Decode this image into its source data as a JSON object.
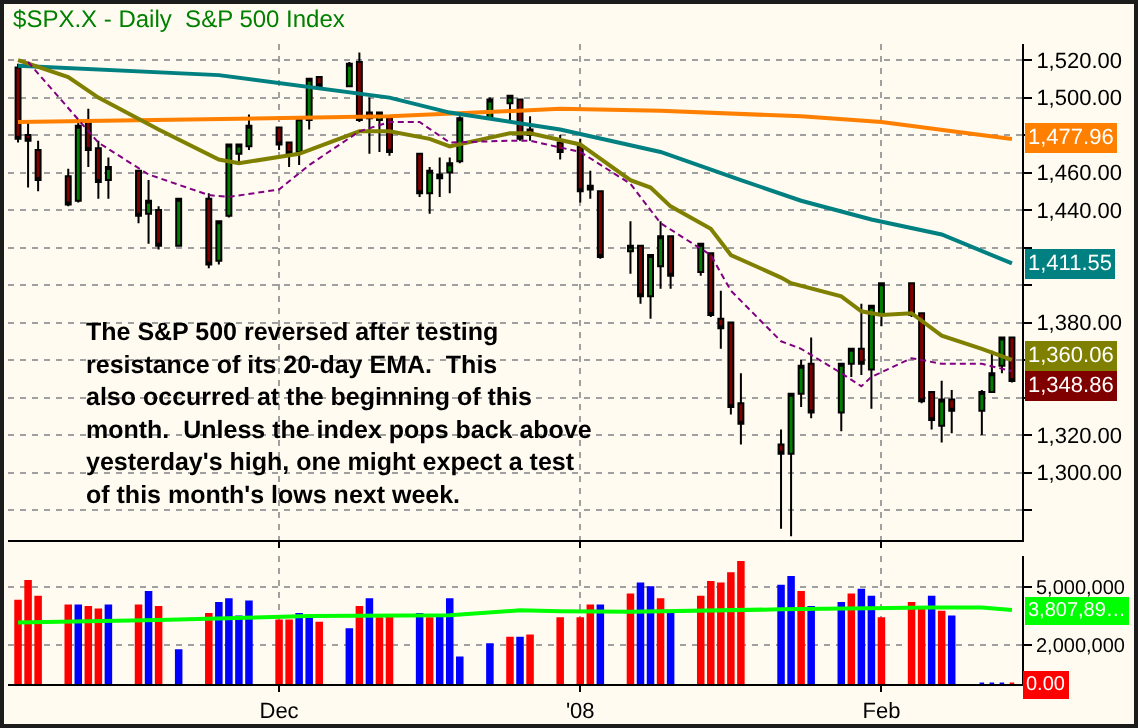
{
  "chart_data": [
    {
      "type": "candlestick",
      "title": "$SPX.X - Daily  S&P 500 Index",
      "x": [
        "2007-11-07",
        "2007-11-08",
        "2007-11-09",
        "2007-11-12",
        "2007-11-13",
        "2007-11-14",
        "2007-11-15",
        "2007-11-16",
        "2007-11-19",
        "2007-11-20",
        "2007-11-21",
        "2007-11-23",
        "2007-11-26",
        "2007-11-27",
        "2007-11-28",
        "2007-11-29",
        "2007-11-30",
        "2007-12-03",
        "2007-12-04",
        "2007-12-05",
        "2007-12-06",
        "2007-12-07",
        "2007-12-10",
        "2007-12-11",
        "2007-12-12",
        "2007-12-13",
        "2007-12-14",
        "2007-12-17",
        "2007-12-18",
        "2007-12-19",
        "2007-12-20",
        "2007-12-21",
        "2007-12-24",
        "2007-12-26",
        "2007-12-27",
        "2007-12-28",
        "2007-12-31",
        "2008-01-02",
        "2008-01-03",
        "2008-01-04",
        "2008-01-07",
        "2008-01-08",
        "2008-01-09",
        "2008-01-10",
        "2008-01-11",
        "2008-01-14",
        "2008-01-15",
        "2008-01-16",
        "2008-01-17",
        "2008-01-18",
        "2008-01-22",
        "2008-01-23",
        "2008-01-24",
        "2008-01-25",
        "2008-01-28",
        "2008-01-29",
        "2008-01-30",
        "2008-01-31",
        "2008-02-01",
        "2008-02-04",
        "2008-02-05",
        "2008-02-06",
        "2008-02-07",
        "2008-02-08",
        "2008-02-11",
        "2008-02-12",
        "2008-02-13",
        "2008-02-14"
      ],
      "ohlc": [
        [
          1516,
          1518,
          1476,
          1478
        ],
        [
          1480,
          1487,
          1452,
          1477
        ],
        [
          1472,
          1477,
          1450,
          1456
        ],
        [
          1458,
          1462,
          1442,
          1443
        ],
        [
          1445,
          1487,
          1444,
          1485
        ],
        [
          1487,
          1494,
          1463,
          1472
        ],
        [
          1473,
          1477,
          1446,
          1455
        ],
        [
          1456,
          1468,
          1446,
          1463
        ],
        [
          1461,
          1461,
          1433,
          1437
        ],
        [
          1438,
          1456,
          1422,
          1445
        ],
        [
          1440,
          1442,
          1419,
          1421
        ],
        [
          1421,
          1446,
          1421,
          1446
        ],
        [
          1446,
          1449,
          1409,
          1411
        ],
        [
          1413,
          1434,
          1411,
          1434
        ],
        [
          1437,
          1475,
          1436,
          1475
        ],
        [
          1470,
          1475,
          1465,
          1475
        ],
        [
          1474,
          1491,
          1472,
          1485
        ],
        [
          1484,
          1484,
          1472,
          1475
        ],
        [
          1476,
          1476,
          1463,
          1470
        ],
        [
          1471,
          1489,
          1464,
          1489
        ],
        [
          1488,
          1510,
          1483,
          1510
        ],
        [
          1511,
          1511,
          1505,
          1506
        ],
        [
          1506,
          1519,
          1506,
          1518
        ],
        [
          1519,
          1524,
          1487,
          1488
        ],
        [
          1492,
          1500,
          1470,
          1489
        ],
        [
          1488,
          1492,
          1471,
          1492
        ],
        [
          1490,
          1490,
          1469,
          1471
        ],
        [
          1470,
          1470,
          1447,
          1449
        ],
        [
          1449,
          1463,
          1438,
          1461
        ],
        [
          1459,
          1468,
          1447,
          1457
        ],
        [
          1460,
          1468,
          1449,
          1465
        ],
        [
          1466,
          1490,
          1465,
          1489
        ],
        [
          1489,
          1500,
          1488,
          1499
        ],
        [
          1497,
          1501,
          1488,
          1501
        ],
        [
          1499,
          1499,
          1477,
          1478
        ],
        [
          1483,
          1490,
          1477,
          1480
        ],
        [
          1476,
          1480,
          1467,
          1471
        ],
        [
          1474,
          1478,
          1444,
          1450
        ],
        [
          1453,
          1461,
          1446,
          1451
        ],
        [
          1450,
          1450,
          1414,
          1415
        ],
        [
          1418,
          1434,
          1406,
          1421
        ],
        [
          1421,
          1421,
          1390,
          1394
        ],
        [
          1394,
          1416,
          1382,
          1416
        ],
        [
          1410,
          1434,
          1398,
          1426
        ],
        [
          1426,
          1426,
          1398,
          1405
        ],
        [
          1407,
          1422,
          1405,
          1422
        ],
        [
          1417,
          1417,
          1383,
          1384
        ],
        [
          1382,
          1397,
          1366,
          1377
        ],
        [
          1380,
          1380,
          1331,
          1335
        ],
        [
          1337,
          1353,
          1315,
          1326
        ],
        [
          1315,
          1323,
          1270,
          1310
        ],
        [
          1310,
          1342,
          1266,
          1342
        ],
        [
          1342,
          1360,
          1335,
          1357
        ],
        [
          1358,
          1372,
          1329,
          1332
        ],
        [
          1332,
          1358,
          1322,
          1358
        ],
        [
          1358,
          1366,
          1351,
          1366
        ],
        [
          1366,
          1390,
          1352,
          1358
        ],
        [
          1355,
          1389,
          1334,
          1389
        ],
        [
          1384,
          1401,
          1378,
          1401
        ],
        [
          1401,
          1401,
          1383,
          1384
        ],
        [
          1385,
          1385,
          1337,
          1338
        ],
        [
          1343,
          1343,
          1323,
          1328
        ],
        [
          1325,
          1349,
          1316,
          1339
        ],
        [
          1339,
          1344,
          1321,
          1333
        ],
        [
          1333,
          1344,
          1320,
          1343
        ],
        [
          1343,
          1365,
          1343,
          1353
        ],
        [
          1357,
          1372,
          1353,
          1372
        ],
        [
          1372,
          1372,
          1348,
          1348.86
        ]
      ],
      "value_labels": [
        null,
        null,
        null,
        null,
        null,
        null,
        null,
        null,
        null,
        null,
        null,
        null,
        null,
        null,
        null,
        null,
        null,
        null,
        null,
        null,
        null,
        null,
        null,
        null,
        null,
        null,
        null,
        null,
        null,
        null,
        null,
        null,
        null,
        null,
        null,
        null,
        null,
        null,
        null,
        null,
        null,
        null,
        null,
        null,
        null,
        null,
        null,
        null,
        null,
        null,
        null,
        null,
        null,
        null,
        null,
        null,
        null,
        null,
        null,
        null,
        null,
        null,
        null,
        null,
        null,
        null,
        null,
        "1,348.86"
      ],
      "series": [
        {
          "type": "line",
          "color": "#ff8000",
          "line_style": "solid",
          "x": [
            "2007-11-07",
            "2007-12-14",
            "2007-12-31",
            "2008-01-10",
            "2008-01-24",
            "2008-02-01",
            "2008-02-14"
          ],
          "values": [
            1487,
            1490,
            1494,
            1493,
            1490,
            1487,
            1477.96
          ],
          "value_labels": [
            null,
            null,
            null,
            null,
            null,
            null,
            "1,477.96"
          ]
        },
        {
          "type": "line",
          "color": "#008080",
          "line_style": "solid",
          "x": [
            "2007-11-07",
            "2007-11-27",
            "2007-12-14",
            "2007-12-20",
            "2007-12-31",
            "2008-01-10",
            "2008-01-18",
            "2008-01-24",
            "2008-01-31",
            "2008-02-07",
            "2008-02-14"
          ],
          "values": [
            1517,
            1512,
            1500,
            1492,
            1483,
            1471,
            1456,
            1445,
            1435,
            1427,
            1411.55
          ],
          "value_labels": [
            null,
            null,
            null,
            null,
            null,
            null,
            null,
            null,
            null,
            null,
            "1,411.55"
          ]
        },
        {
          "type": "line",
          "color": "#808000",
          "line_style": "solid",
          "x": [
            "2007-11-07",
            "2007-11-12",
            "2007-11-15",
            "2007-11-21",
            "2007-11-27",
            "2007-11-29",
            "2007-12-05",
            "2007-12-11",
            "2007-12-14",
            "2007-12-18",
            "2007-12-20",
            "2007-12-26",
            "2007-12-28",
            "2008-01-02",
            "2008-01-07",
            "2008-01-09",
            "2008-01-11",
            "2008-01-15",
            "2008-01-17",
            "2008-01-22",
            "2008-01-23",
            "2008-01-28",
            "2008-01-30",
            "2008-02-01",
            "2008-02-04",
            "2008-02-07",
            "2008-02-11",
            "2008-02-14"
          ],
          "values": [
            1520,
            1511,
            1500,
            1483,
            1467,
            1465,
            1470,
            1482,
            1482,
            1478,
            1474,
            1481,
            1481,
            1475,
            1456,
            1452,
            1442,
            1430,
            1416,
            1404,
            1401,
            1394,
            1386,
            1384,
            1385,
            1373,
            1366,
            1360.06
          ],
          "value_labels": [
            null,
            null,
            null,
            null,
            null,
            null,
            null,
            null,
            null,
            null,
            null,
            null,
            null,
            null,
            null,
            null,
            null,
            null,
            null,
            null,
            null,
            null,
            null,
            null,
            null,
            null,
            null,
            "1,360.06"
          ]
        },
        {
          "type": "line",
          "color": "#800080",
          "line_style": "dashed",
          "x": [
            "2007-11-08",
            "2007-11-15",
            "2007-11-20",
            "2007-11-26",
            "2007-11-28",
            "2007-12-03",
            "2007-12-06",
            "2007-12-11",
            "2007-12-14",
            "2007-12-17",
            "2007-12-20",
            "2007-12-26",
            "2007-12-28",
            "2008-01-02",
            "2008-01-07",
            "2008-01-10",
            "2008-01-15",
            "2008-01-17",
            "2008-01-22",
            "2008-01-24",
            "2008-01-28",
            "2008-01-30",
            "2008-01-31",
            "2008-02-04",
            "2008-02-07",
            "2008-02-11",
            "2008-02-14"
          ],
          "values": [
            1519,
            1476,
            1459,
            1448,
            1447,
            1451,
            1464,
            1482,
            1487,
            1487,
            1476,
            1477,
            1477,
            1471,
            1454,
            1433,
            1416,
            1397,
            1370,
            1366,
            1353,
            1346,
            1351,
            1361,
            1358,
            1358,
            1354
          ]
        }
      ],
      "annotations": [
        "The S&P 500 reversed after testing\nresistance of its 20-day EMA.  This\nalso occurred at the beginning of this\nmonth.  Unless the index pops back above\nyesterday's high, one might expect a test\nof this month's lows next week."
      ],
      "xlim": [
        "2007-11-06",
        "2008-02-15"
      ],
      "xticks": [
        {
          "value": "2007-12-03",
          "label": null
        },
        {
          "value": "2008-01-02",
          "label": null
        },
        {
          "value": "2008-02-01",
          "label": null
        }
      ],
      "ylim": [
        1264,
        1528.6
      ],
      "yticks": [
        {
          "value": 1280,
          "label": null
        },
        {
          "value": 1300,
          "label": "1,300.00"
        },
        {
          "value": 1320,
          "label": "1,320.00"
        },
        {
          "value": 1340,
          "label": null
        },
        {
          "value": 1360,
          "label": null
        },
        {
          "value": 1380,
          "label": "1,380.00"
        },
        {
          "value": 1400,
          "label": null
        },
        {
          "value": 1420,
          "label": null
        },
        {
          "value": 1440,
          "label": "1,440.00"
        },
        {
          "value": 1460,
          "label": "1,460.00"
        },
        {
          "value": 1480,
          "label": null
        },
        {
          "value": 1500,
          "label": "1,500.00"
        },
        {
          "value": 1520,
          "label": "1,520.00"
        }
      ],
      "grid": true,
      "tick_labels": "y"
    },
    {
      "type": "bar",
      "x": [
        "2007-11-07",
        "2007-11-08",
        "2007-11-09",
        "2007-11-12",
        "2007-11-13",
        "2007-11-14",
        "2007-11-15",
        "2007-11-16",
        "2007-11-19",
        "2007-11-20",
        "2007-11-21",
        "2007-11-23",
        "2007-11-26",
        "2007-11-27",
        "2007-11-28",
        "2007-11-29",
        "2007-11-30",
        "2007-12-03",
        "2007-12-04",
        "2007-12-05",
        "2007-12-06",
        "2007-12-07",
        "2007-12-10",
        "2007-12-11",
        "2007-12-12",
        "2007-12-13",
        "2007-12-14",
        "2007-12-17",
        "2007-12-18",
        "2007-12-19",
        "2007-12-20",
        "2007-12-21",
        "2007-12-24",
        "2007-12-26",
        "2007-12-27",
        "2007-12-28",
        "2007-12-31",
        "2008-01-02",
        "2008-01-03",
        "2008-01-04",
        "2008-01-07",
        "2008-01-08",
        "2008-01-09",
        "2008-01-10",
        "2008-01-11",
        "2008-01-14",
        "2008-01-15",
        "2008-01-16",
        "2008-01-17",
        "2008-01-18",
        "2008-01-22",
        "2008-01-23",
        "2008-01-24",
        "2008-01-25",
        "2008-01-28",
        "2008-01-29",
        "2008-01-30",
        "2008-01-31",
        "2008-02-01",
        "2008-02-04",
        "2008-02-05",
        "2008-02-06",
        "2008-02-07",
        "2008-02-08",
        "2008-02-11",
        "2008-02-12",
        "2008-02-13",
        "2008-02-14"
      ],
      "series": [
        {
          "type": "bar",
          "values": [
            4270000,
            5280000,
            4470000,
            4020000,
            4020000,
            3940000,
            3820000,
            4020000,
            4020000,
            4720000,
            3940000,
            1710000,
            3580000,
            4150000,
            4350000,
            3460000,
            4230000,
            3250000,
            3250000,
            3580000,
            3460000,
            3130000,
            2800000,
            3940000,
            4350000,
            3370000,
            3460000,
            3580000,
            3370000,
            3460000,
            4350000,
            1340000,
            2030000,
            2360000,
            2360000,
            2480000,
            3370000,
            3370000,
            4020000,
            4020000,
            4590000,
            5160000,
            4960000,
            4350000,
            3580000,
            4470000,
            5240000,
            5160000,
            5690000,
            6260000,
            5040000,
            5490000,
            4720000,
            3940000,
            4150000,
            4590000,
            4840000,
            4470000,
            3370000,
            4150000,
            3940000,
            4470000,
            3700000,
            3460000,
            0,
            0,
            0,
            0
          ],
          "colors": [
            "#ff0000",
            "#ff0000",
            "#ff0000",
            "#ff0000",
            "#0000ff",
            "#ff0000",
            "#ff0000",
            "#0000ff",
            "#ff0000",
            "#0000ff",
            "#ff0000",
            "#0000ff",
            "#ff0000",
            "#0000ff",
            "#0000ff",
            "#0000ff",
            "#0000ff",
            "#ff0000",
            "#ff0000",
            "#0000ff",
            "#0000ff",
            "#ff0000",
            "#0000ff",
            "#ff0000",
            "#0000ff",
            "#ff0000",
            "#ff0000",
            "#0000ff",
            "#ff0000",
            "#0000ff",
            "#0000ff",
            "#0000ff",
            "#0000ff",
            "#ff0000",
            "#0000ff",
            "#ff0000",
            "#ff0000",
            "#ff0000",
            "#ff0000",
            "#0000ff",
            "#ff0000",
            "#0000ff",
            "#0000ff",
            "#ff0000",
            "#0000ff",
            "#ff0000",
            "#ff0000",
            "#ff0000",
            "#ff0000",
            "#ff0000",
            "#0000ff",
            "#0000ff",
            "#ff0000",
            "#0000ff",
            "#0000ff",
            "#ff0000",
            "#0000ff",
            "#0000ff",
            "#ff0000",
            "#ff0000",
            "#ff0000",
            "#0000ff",
            "#ff0000",
            "#0000ff",
            "#0000ff",
            "#0000ff",
            "#0000ff",
            "#ff0000"
          ],
          "value_labels": [
            null,
            null,
            null,
            null,
            null,
            null,
            null,
            null,
            null,
            null,
            null,
            null,
            null,
            null,
            null,
            null,
            null,
            null,
            null,
            null,
            null,
            null,
            null,
            null,
            null,
            null,
            null,
            null,
            null,
            null,
            null,
            null,
            null,
            null,
            null,
            null,
            null,
            null,
            null,
            null,
            null,
            null,
            null,
            null,
            null,
            null,
            null,
            null,
            null,
            null,
            null,
            null,
            null,
            null,
            null,
            null,
            null,
            null,
            null,
            null,
            null,
            null,
            null,
            null,
            null,
            null,
            null,
            null
          ]
        },
        {
          "type": "line",
          "color": "#00ff00",
          "x": [
            "2007-11-07",
            "2007-11-21",
            "2007-12-06",
            "2007-12-20",
            "2007-12-27",
            "2007-12-31",
            "2008-01-07",
            "2008-01-22",
            "2008-02-06",
            "2008-02-11",
            "2008-02-14"
          ],
          "values": [
            3170000,
            3300000,
            3500000,
            3550000,
            3800000,
            3750000,
            3720000,
            3850000,
            3950000,
            3950000,
            3810000
          ],
          "value_labels": [
            null,
            null,
            null,
            null,
            null,
            null,
            null,
            null,
            null,
            null,
            "3,807,89…"
          ]
        }
      ],
      "annotations": [
        {
          "text": "0.00",
          "x": "2008-02-14",
          "y": 0
        }
      ],
      "xlim": [
        "2007-11-06",
        "2008-02-15"
      ],
      "xticks": [
        {
          "value": "2007-12-03",
          "label": "Dec"
        },
        {
          "value": "2008-01-02",
          "label": "'08"
        },
        {
          "value": "2008-02-01",
          "label": "Feb"
        }
      ],
      "ylim": [
        0,
        6600000
      ],
      "yticks": [
        {
          "value": 2000000,
          "label": "2,000,000"
        },
        {
          "value": 5000000,
          "label": "5,000,000"
        }
      ],
      "grid": true
    }
  ]
}
